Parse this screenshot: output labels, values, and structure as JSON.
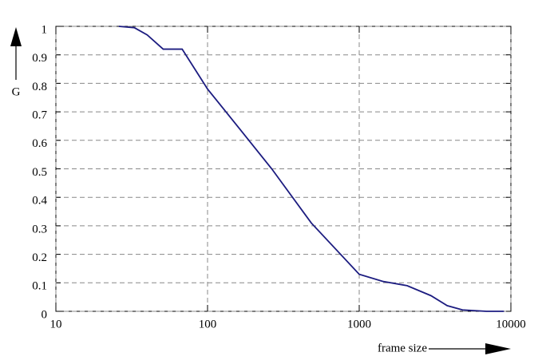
{
  "chart_data": {
    "type": "line",
    "x_label": "frame size",
    "y_label": "G",
    "log_x": true,
    "grid": true,
    "xlim": [
      10,
      10000
    ],
    "xticks": [
      10,
      100,
      1000,
      10000
    ],
    "ylim": [
      0,
      1
    ],
    "yticks": [
      0,
      0.1,
      0.2,
      0.3,
      0.4,
      0.5,
      0.6,
      0.7,
      0.8,
      0.9,
      1
    ],
    "series": [
      {
        "name": "G",
        "color": "#1c1c80",
        "x": [
          26,
          33,
          40,
          51,
          68,
          100,
          163,
          265,
          483,
          1000,
          1430,
          2070,
          2970,
          3800,
          4800,
          6900,
          9000
        ],
        "values": [
          1.0,
          0.995,
          0.97,
          0.92,
          0.92,
          0.78,
          0.64,
          0.5,
          0.31,
          0.13,
          0.105,
          0.09,
          0.055,
          0.02,
          0.005,
          0.0,
          0.0
        ]
      }
    ]
  }
}
